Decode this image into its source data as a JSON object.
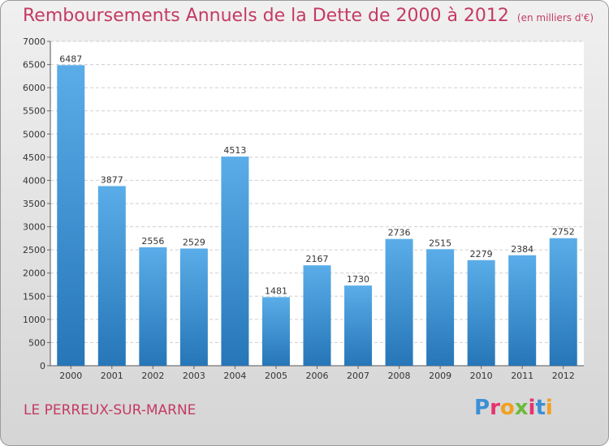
{
  "title": "Remboursements Annuels de la Dette de 2000 à 2012",
  "unit_note": "(en milliers d'€)",
  "location": "LE PERREUX-SUR-MARNE",
  "brand": {
    "text": "Proxiti",
    "colors": [
      "#3a8fd6",
      "#e5336d",
      "#f0a020",
      "#6cba3c",
      "#e5336d",
      "#3a8fd6",
      "#f0a020"
    ]
  },
  "colors": {
    "bar_light": "#5aade8",
    "bar_dark": "#2676b8",
    "accent": "#c43a63"
  },
  "chart_data": {
    "type": "bar",
    "categories": [
      "2000",
      "2001",
      "2002",
      "2003",
      "2004",
      "2005",
      "2006",
      "2007",
      "2008",
      "2009",
      "2010",
      "2011",
      "2012"
    ],
    "values": [
      6487,
      3877,
      2556,
      2529,
      4513,
      1481,
      2167,
      1730,
      2736,
      2515,
      2279,
      2384,
      2752
    ],
    "title": "Remboursements Annuels de la Dette de 2000 à 2012",
    "ylim": [
      0,
      7000
    ],
    "yticks": [
      0,
      500,
      1000,
      1500,
      2000,
      2500,
      3000,
      3500,
      4000,
      4500,
      5000,
      5500,
      6000,
      6500,
      7000
    ],
    "grid": true,
    "data_labels": true
  }
}
